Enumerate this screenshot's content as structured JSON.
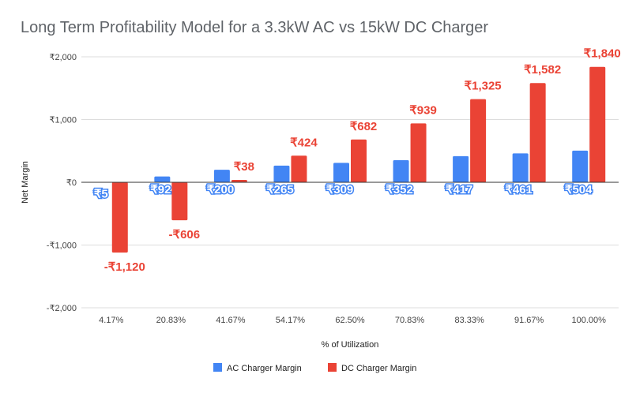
{
  "chart_data": {
    "type": "bar",
    "title": "Long Term Profitability Model for a 3.3kW AC vs 15kW DC Charger",
    "xlabel": "% of Utilization",
    "ylabel": "Net Margin",
    "ylim": [
      -2000,
      2000
    ],
    "yticks": [
      {
        "value": 2000,
        "label": "₹2,000"
      },
      {
        "value": 1000,
        "label": "₹1,000"
      },
      {
        "value": 0,
        "label": "₹0"
      },
      {
        "value": -1000,
        "label": "-₹1,000"
      },
      {
        "value": -2000,
        "label": "-₹2,000"
      }
    ],
    "grid": true,
    "legend_position": "bottom",
    "categories": [
      "4.17%",
      "20.83%",
      "41.67%",
      "54.17%",
      "62.50%",
      "70.83%",
      "83.33%",
      "91.67%",
      "100.00%"
    ],
    "series": [
      {
        "name": "AC Charger Margin",
        "color": "#4285f4",
        "values": [
          5,
          92,
          200,
          265,
          309,
          352,
          417,
          461,
          504
        ],
        "labels": [
          "₹5",
          "₹92",
          "₹200",
          "₹265",
          "₹309",
          "₹352",
          "₹417",
          "₹461",
          "₹504"
        ]
      },
      {
        "name": "DC Charger Margin",
        "color": "#ea4335",
        "values": [
          -1120,
          -606,
          38,
          424,
          682,
          939,
          1325,
          1582,
          1840
        ],
        "labels": [
          "-₹1,120",
          "-₹606",
          "₹38",
          "₹424",
          "₹682",
          "₹939",
          "₹1,325",
          "₹1,582",
          "₹1,840"
        ]
      }
    ]
  }
}
